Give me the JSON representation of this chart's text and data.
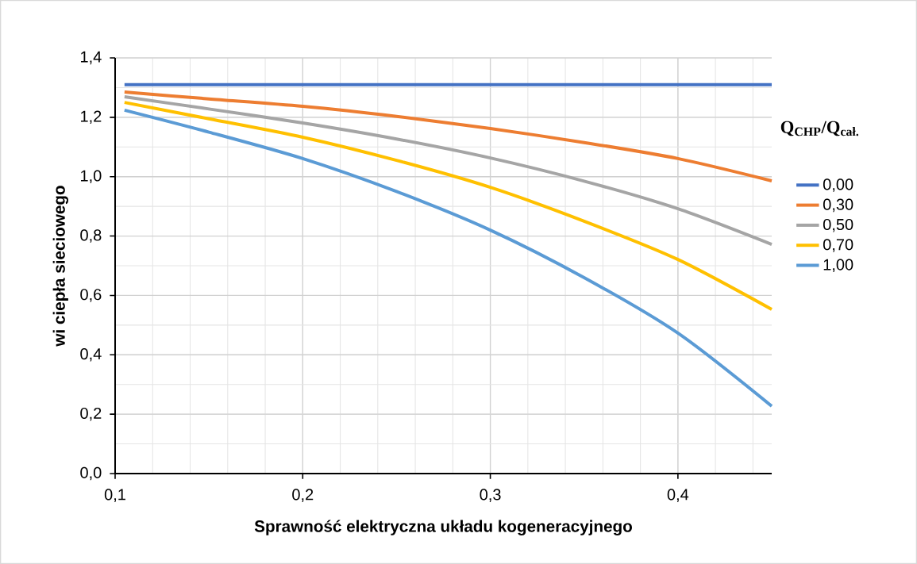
{
  "chart_data": {
    "type": "line",
    "xlabel": "Sprawność elektryczna układu kogeneracyjnego",
    "ylabel": "wi ciepła sieciowego",
    "legend_title": "Q$_{CHP}$/Q$_{cał.}$",
    "x": [
      0.105,
      0.15,
      0.2,
      0.25,
      0.3,
      0.35,
      0.4,
      0.45
    ],
    "series": [
      {
        "name": "0,00",
        "color": "#4472c4",
        "values": [
          1.31,
          1.31,
          1.31,
          1.31,
          1.31,
          1.31,
          1.31,
          1.31
        ]
      },
      {
        "name": "0,30",
        "color": "#ed7d31",
        "values": [
          1.285,
          1.262,
          1.237,
          1.203,
          1.162,
          1.115,
          1.061,
          0.986
        ]
      },
      {
        "name": "0,50",
        "color": "#a5a5a5",
        "values": [
          1.269,
          1.228,
          1.181,
          1.127,
          1.063,
          0.985,
          0.892,
          0.772
        ]
      },
      {
        "name": "0,70",
        "color": "#ffc000",
        "values": [
          1.25,
          1.195,
          1.133,
          1.055,
          0.964,
          0.85,
          0.721,
          0.553
        ]
      },
      {
        "name": "1,00",
        "color": "#5b9bd5",
        "values": [
          1.224,
          1.15,
          1.061,
          0.95,
          0.82,
          0.66,
          0.473,
          0.227
        ]
      }
    ],
    "xlim": [
      0.1,
      0.45
    ],
    "xticks": [
      {
        "value": 0.1,
        "label": "0,1"
      },
      {
        "value": 0.2,
        "label": "0,2"
      },
      {
        "value": 0.3,
        "label": "0,3"
      },
      {
        "value": 0.4,
        "label": "0,4"
      }
    ],
    "ylim": [
      0,
      1.4
    ],
    "yticks": [
      {
        "value": 0,
        "label": "0,0"
      },
      {
        "value": 0.2,
        "label": "0,2"
      },
      {
        "value": 0.4,
        "label": "0,4"
      },
      {
        "value": 0.6,
        "label": "0,6"
      },
      {
        "value": 0.8,
        "label": "0,8"
      },
      {
        "value": 1.0,
        "label": "1,0"
      },
      {
        "value": 1.2,
        "label": "1,2"
      },
      {
        "value": 1.4,
        "label": "1,4"
      }
    ],
    "grid": true,
    "legend": "right",
    "marker": "none",
    "line_style": "solid"
  }
}
